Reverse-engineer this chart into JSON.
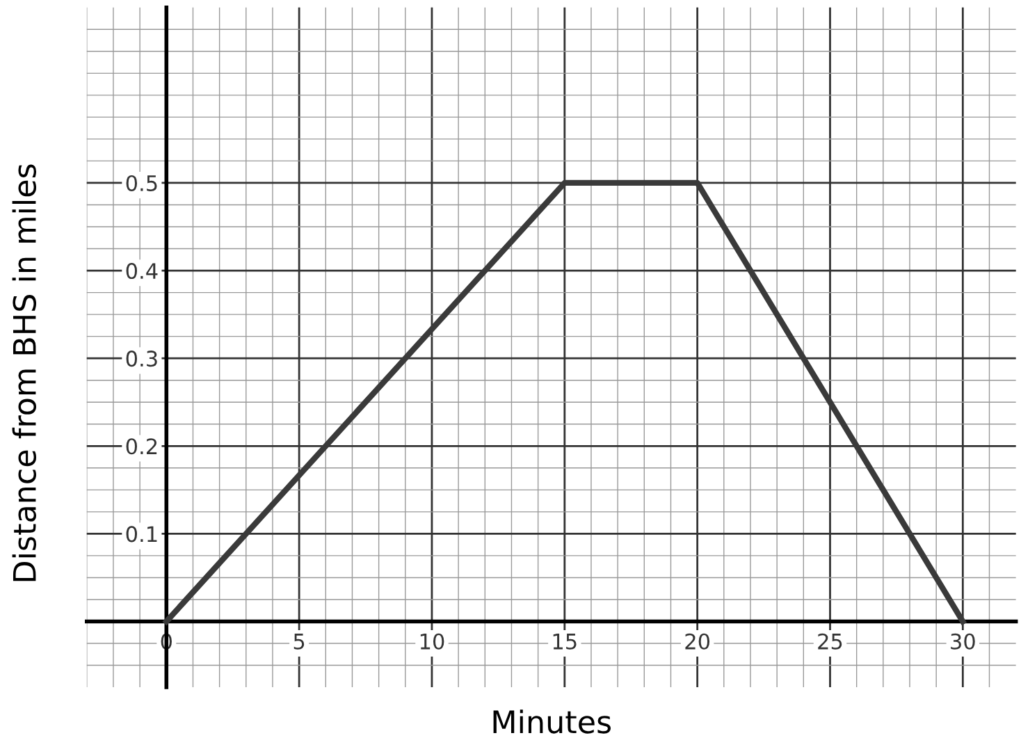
{
  "chart_data": {
    "type": "line",
    "xlabel": "Minutes",
    "ylabel": "Distance from BHS in miles",
    "x": [
      0,
      15,
      20,
      30
    ],
    "series": [
      {
        "color": "#3a3a3a",
        "values": [
          0,
          0.5,
          0.5,
          0
        ]
      }
    ],
    "xlim": [
      -3,
      32
    ],
    "ylim": [
      -0.075,
      0.7
    ],
    "xticks": [
      0,
      5,
      10,
      15,
      20,
      25,
      30
    ],
    "yticks": [
      0.1,
      0.2,
      0.3,
      0.4,
      0.5
    ],
    "grid": true,
    "marker": "none",
    "line_style": "solid"
  }
}
